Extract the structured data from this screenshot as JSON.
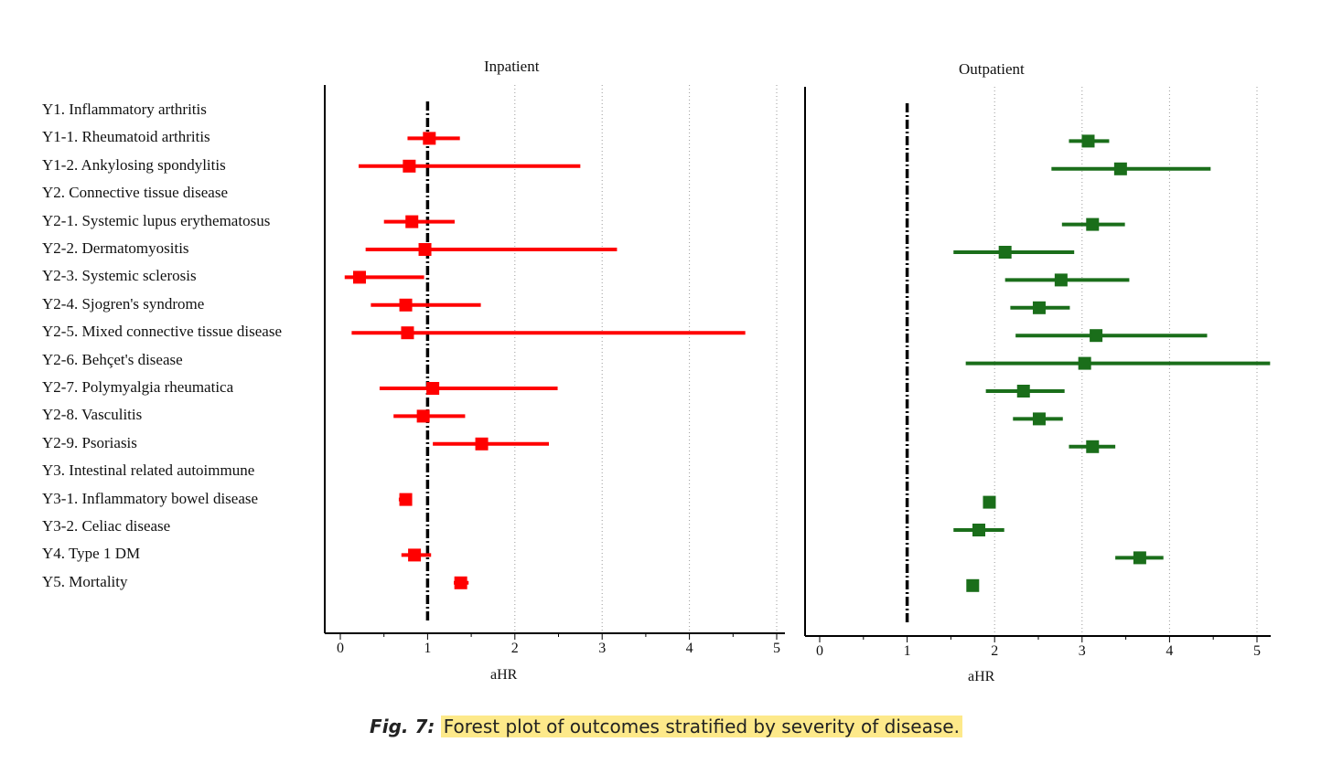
{
  "chart_data": {
    "type": "forest",
    "row_labels": [
      "Y1. Inflammatory arthritis",
      "Y1-1. Rheumatoid arthritis",
      "Y1-2. Ankylosing spondylitis",
      "Y2. Connective tissue disease",
      "Y2-1. Systemic lupus erythematosus",
      "Y2-2. Dermatomyositis",
      "Y2-3. Systemic sclerosis",
      "Y2-4. Sjogren's syndrome",
      "Y2-5. Mixed connective tissue disease",
      "Y2-6. Behçet's disease",
      "Y2-7. Polymyalgia rheumatica",
      "Y2-8. Vasculitis",
      "Y2-9. Psoriasis",
      "Y3. Intestinal related autoimmune",
      "Y3-1. Inflammatory bowel disease",
      "Y3-2. Celiac disease",
      "Y4. Type 1 DM",
      "Y5. Mortality"
    ],
    "panels": [
      {
        "title": "Inpatient",
        "xlabel": "aHR",
        "xlim": [
          0,
          5
        ],
        "ticks": [
          "0",
          "1",
          "2",
          "3",
          "4",
          "5"
        ],
        "reference": 1,
        "color": "#ff0000",
        "estimates": [
          null,
          1.02,
          0.79,
          null,
          0.82,
          0.97,
          0.22,
          0.75,
          0.77,
          null,
          1.06,
          0.95,
          1.62,
          null,
          0.75,
          null,
          0.85,
          1.38
        ],
        "lower": [
          null,
          0.77,
          0.21,
          null,
          0.5,
          0.29,
          0.05,
          0.35,
          0.13,
          null,
          0.45,
          0.61,
          1.06,
          null,
          0.67,
          null,
          0.7,
          1.3
        ],
        "upper": [
          null,
          1.37,
          2.75,
          null,
          1.31,
          3.17,
          0.96,
          1.61,
          4.64,
          null,
          2.49,
          1.43,
          2.39,
          null,
          0.82,
          null,
          1.04,
          1.47
        ]
      },
      {
        "title": "Outpatient",
        "xlabel": "aHR",
        "xlim": [
          0,
          5
        ],
        "ticks": [
          "0",
          "1",
          "2",
          "3",
          "4",
          "5"
        ],
        "reference": 1,
        "color": "#1a6e1a",
        "estimates": [
          null,
          3.07,
          3.44,
          null,
          3.12,
          2.12,
          2.76,
          2.51,
          3.16,
          3.03,
          2.33,
          2.51,
          3.12,
          null,
          1.94,
          1.82,
          3.66,
          1.75
        ],
        "lower": [
          null,
          2.85,
          2.65,
          null,
          2.77,
          1.53,
          2.12,
          2.18,
          2.24,
          1.67,
          1.9,
          2.21,
          2.85,
          null,
          1.94,
          1.53,
          3.38,
          1.75
        ],
        "upper": [
          null,
          3.31,
          4.47,
          null,
          3.49,
          2.91,
          3.54,
          2.86,
          4.43,
          5.15,
          2.8,
          2.78,
          3.38,
          null,
          1.94,
          2.11,
          3.93,
          1.75
        ]
      }
    ]
  },
  "caption": {
    "label": "Fig. 7:",
    "text": "Forest plot of outcomes stratified by severity of disease."
  }
}
